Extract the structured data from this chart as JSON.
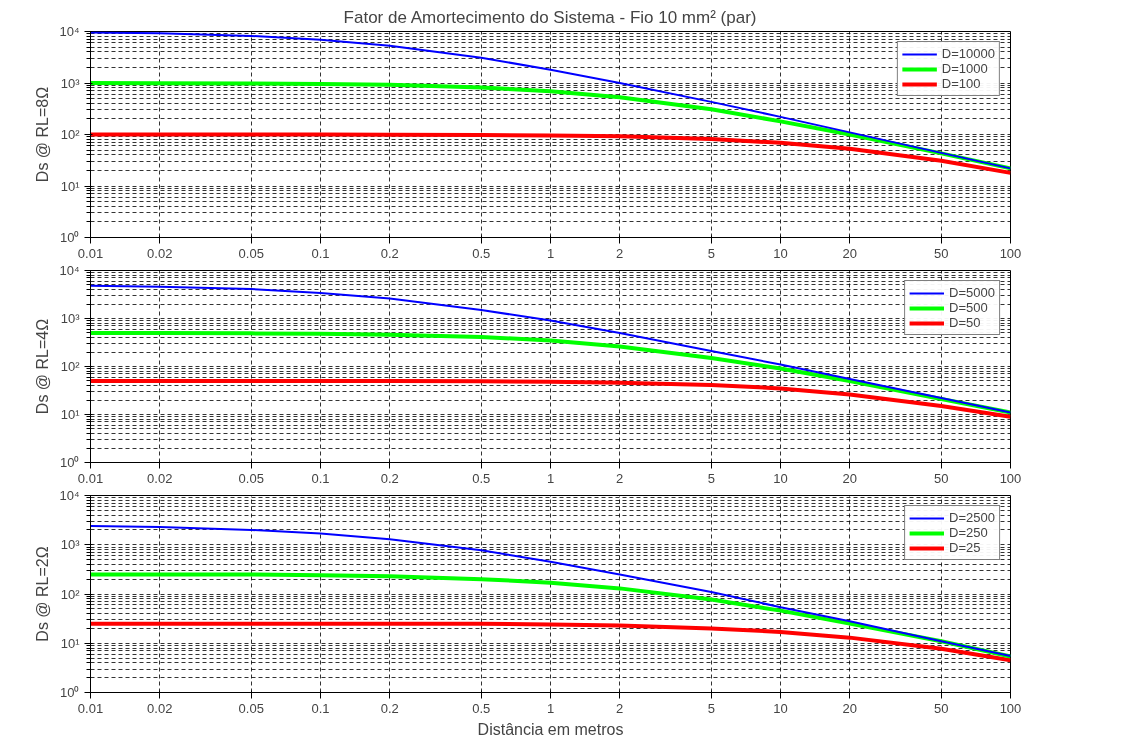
{
  "chart_data": [
    {
      "type": "line",
      "title": "Fator de Amortecimento do Sistema - Fio 10 mm² (par)",
      "ylabel": "Ds @ RL=8Ω",
      "log": "xy",
      "grid": true,
      "legend": "top right",
      "marker": "none",
      "line_style": "solid",
      "x": [
        0.01,
        0.02,
        0.05,
        0.1,
        0.2,
        0.5,
        1,
        2,
        5,
        10,
        20,
        50,
        100
      ],
      "xlim": [
        0.01,
        100
      ],
      "xticks": [
        0.01,
        0.02,
        0.05,
        0.1,
        0.2,
        0.5,
        1,
        2,
        5,
        10,
        20,
        50,
        100
      ],
      "ylim": [
        1,
        10000
      ],
      "yticks": [
        {
          "value": 1,
          "label": "10⁰"
        },
        {
          "value": 10,
          "label": "10¹"
        },
        {
          "value": 100,
          "label": "10²"
        },
        {
          "value": 1000,
          "label": "10³"
        },
        {
          "value": 10000,
          "label": "10⁴"
        }
      ],
      "series": [
        {
          "name": "D=10000",
          "color": "#0000ff",
          "values": [
            9600,
            9200,
            8200,
            6900,
            5300,
            3100,
            1800,
            1000,
            430,
            220,
            110,
            44,
            22
          ]
        },
        {
          "name": "D=1000",
          "color": "#00ff00",
          "values": [
            1000,
            990,
            980,
            960,
            920,
            820,
            690,
            530,
            310,
            180,
            100,
            43,
            22
          ]
        },
        {
          "name": "D=100",
          "color": "#ff0000",
          "values": [
            100,
            100,
            100,
            100,
            99,
            98,
            96,
            92,
            82,
            69,
            53,
            31,
            18
          ]
        }
      ]
    },
    {
      "type": "line",
      "ylabel": "Ds @ RL=4Ω",
      "log": "xy",
      "grid": true,
      "legend": "top right",
      "marker": "none",
      "line_style": "solid",
      "x": [
        0.01,
        0.02,
        0.05,
        0.1,
        0.2,
        0.5,
        1,
        2,
        5,
        10,
        20,
        50,
        100
      ],
      "xlim": [
        0.01,
        100
      ],
      "xticks": [
        0.01,
        0.02,
        0.05,
        0.1,
        0.2,
        0.5,
        1,
        2,
        5,
        10,
        20,
        50,
        100
      ],
      "ylim": [
        1,
        10000
      ],
      "yticks": [
        {
          "value": 1,
          "label": "10⁰"
        },
        {
          "value": 10,
          "label": "10¹"
        },
        {
          "value": 100,
          "label": "10²"
        },
        {
          "value": 1000,
          "label": "10³"
        },
        {
          "value": 10000,
          "label": "10⁴"
        }
      ],
      "series": [
        {
          "name": "D=5000",
          "color": "#0000ff",
          "values": [
            4800,
            4600,
            4100,
            3400,
            2600,
            1500,
            910,
            500,
            210,
            110,
            55,
            22,
            11
          ]
        },
        {
          "name": "D=500",
          "color": "#00ff00",
          "values": [
            500,
            500,
            490,
            480,
            460,
            410,
            350,
            260,
            150,
            91,
            50,
            21,
            11
          ]
        },
        {
          "name": "D=50",
          "color": "#ff0000",
          "values": [
            50,
            50,
            50,
            50,
            50,
            49,
            48,
            46,
            41,
            35,
            26,
            15,
            9
          ]
        }
      ]
    },
    {
      "type": "line",
      "ylabel": "Ds @ RL=2Ω",
      "xlabel": "Distância em metros",
      "log": "xy",
      "grid": true,
      "legend": "top right",
      "marker": "none",
      "line_style": "solid",
      "x": [
        0.01,
        0.02,
        0.05,
        0.1,
        0.2,
        0.5,
        1,
        2,
        5,
        10,
        20,
        50,
        100
      ],
      "xlim": [
        0.01,
        100
      ],
      "xticks": [
        0.01,
        0.02,
        0.05,
        0.1,
        0.2,
        0.5,
        1,
        2,
        5,
        10,
        20,
        50,
        100
      ],
      "ylim": [
        1,
        10000
      ],
      "yticks": [
        {
          "value": 1,
          "label": "10⁰"
        },
        {
          "value": 10,
          "label": "10¹"
        },
        {
          "value": 100,
          "label": "10²"
        },
        {
          "value": 1000,
          "label": "10³"
        },
        {
          "value": 10000,
          "label": "10⁴"
        }
      ],
      "series": [
        {
          "name": "D=2500",
          "color": "#0000ff",
          "values": [
            2400,
            2300,
            2000,
            1700,
            1300,
            770,
            450,
            250,
            110,
            54,
            28,
            11,
            5.5
          ]
        },
        {
          "name": "D=250",
          "color": "#00ff00",
          "values": [
            250,
            250,
            250,
            240,
            230,
            200,
            170,
            130,
            77,
            46,
            25,
            11,
            5.4
          ]
        },
        {
          "name": "D=25",
          "color": "#ff0000",
          "values": [
            25,
            25,
            25,
            25,
            25,
            25,
            24,
            23,
            20,
            17,
            13,
            7.7,
            4.5
          ]
        }
      ]
    }
  ]
}
